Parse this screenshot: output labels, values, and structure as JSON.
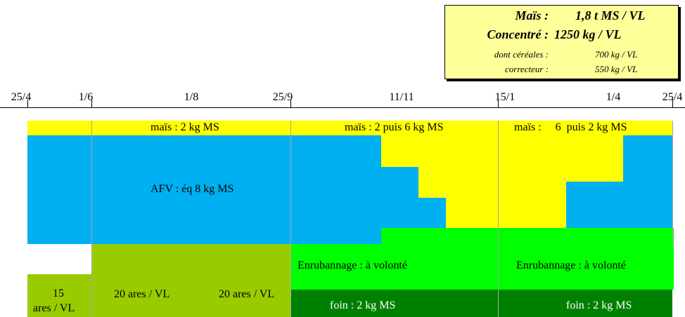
{
  "summary": {
    "mais_label": "Maïs :",
    "mais_value": "1,8  t MS / VL",
    "concentre_label": "Concentré :",
    "concentre_value": "1250  kg / VL",
    "cereales_label": "dont céréales :",
    "cereales_value": "700  kg / VL",
    "correcteur_label": "correcteur :",
    "correcteur_value": "550  kg / VL"
  },
  "timeline": {
    "labels": [
      "25/4",
      "1/6",
      "1/8",
      "25/9",
      "11/11",
      "15/1",
      "1/4",
      "25/4"
    ]
  },
  "bands": {
    "mais_1": "maïs : 2 kg MS",
    "mais_2": "maïs : 2 puis 6 kg MS",
    "mais_3": "maïs :     6  puis 2 kg MS",
    "afv": "AFV : éq 8 kg MS",
    "enrub_1": "Enrubannage : à volonté",
    "enrub_2": "Enrubannage : à volonté",
    "foin_1": "foin : 2 kg MS",
    "foin_2": "foin : 2 kg MS",
    "ares_15_a": "15",
    "ares_15_b": "ares / VL",
    "ares_20_a": "20 ares / VL",
    "ares_20_b": "20 ares / VL"
  },
  "colors": {
    "mais": "#ffff00",
    "afv": "#00b0f0",
    "enrubannage": "#00ff00",
    "paturage": "#99cc00",
    "foin": "#008000"
  }
}
